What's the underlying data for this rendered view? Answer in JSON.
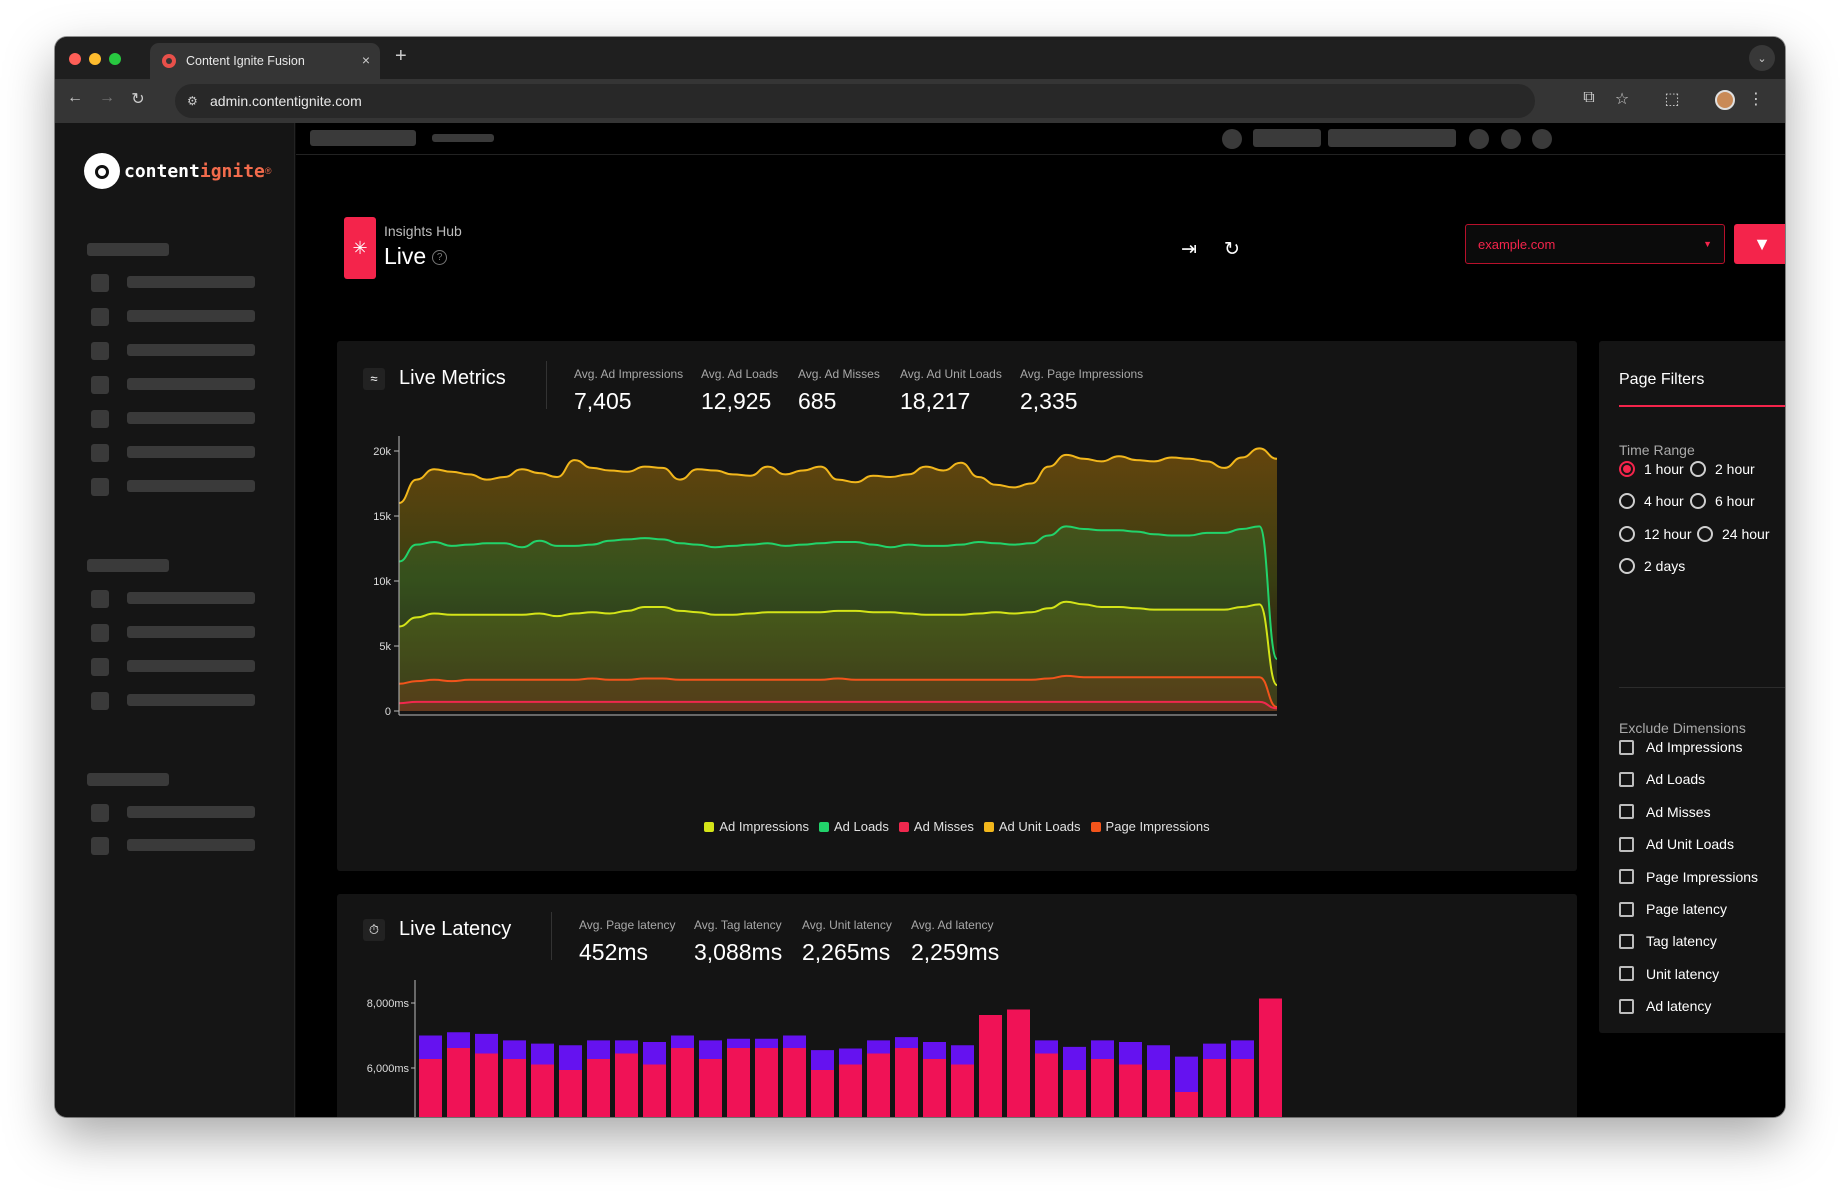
{
  "browser": {
    "tab_title": "Content Ignite Fusion",
    "url": "admin.contentignite.com",
    "new_tab": "+",
    "close": "×"
  },
  "logo": {
    "part1": "content",
    "part2": "ignite",
    "reg": "®"
  },
  "header": {
    "subtitle": "Insights Hub",
    "title": "Live",
    "domain_placeholder": "example.com"
  },
  "live_metrics": {
    "title": "Live Metrics",
    "stats": [
      {
        "label": "Avg. Ad Impressions",
        "value": "7,405"
      },
      {
        "label": "Avg. Ad Loads",
        "value": "12,925"
      },
      {
        "label": "Avg. Ad Misses",
        "value": "685"
      },
      {
        "label": "Avg. Ad Unit Loads",
        "value": "18,217"
      },
      {
        "label": "Avg. Page Impressions",
        "value": "2,335"
      }
    ],
    "legend": [
      "Ad Impressions",
      "Ad Loads",
      "Ad Misses",
      "Ad Unit Loads",
      "Page Impressions"
    ]
  },
  "live_latency": {
    "title": "Live Latency",
    "stats": [
      {
        "label": "Avg. Page latency",
        "value": "452ms"
      },
      {
        "label": "Avg. Tag latency",
        "value": "3,088ms"
      },
      {
        "label": "Avg. Unit latency",
        "value": "2,265ms"
      },
      {
        "label": "Avg. Ad latency",
        "value": "2,259ms"
      }
    ]
  },
  "page_filters": {
    "title": "Page Filters",
    "time_range_label": "Time Range",
    "time_ranges": [
      "1 hour",
      "2 hour",
      "4 hour",
      "6 hour",
      "12 hour",
      "24 hour",
      "2 days"
    ],
    "selected_time_range": "1 hour",
    "exclude_label": "Exclude Dimensions",
    "dimensions": [
      "Ad Impressions",
      "Ad Loads",
      "Ad Misses",
      "Ad Unit Loads",
      "Page Impressions",
      "Page latency",
      "Tag latency",
      "Unit latency",
      "Ad latency"
    ]
  },
  "colors": {
    "accent": "#f4244b",
    "ad_impressions": "#d4e418",
    "ad_loads": "#22d36b",
    "ad_misses": "#f0284e",
    "ad_unit_loads": "#f2b71c",
    "page_impressions": "#f2541b",
    "latency_purple": "#6512f0",
    "latency_pink": "#f01256"
  },
  "chart_data": [
    {
      "type": "area",
      "title": "",
      "y_ticks": [
        "0",
        "5k",
        "10k",
        "15k",
        "20k"
      ],
      "ylim": [
        0,
        20000
      ],
      "grid": false,
      "legend_position": "bottom",
      "series": [
        {
          "name": "Ad Unit Loads",
          "color": "#f2b71c",
          "values": [
            16000,
            17800,
            18600,
            18400,
            18200,
            17800,
            18000,
            18600,
            18300,
            18000,
            19300,
            18700,
            18500,
            18400,
            18800,
            18700,
            17800,
            18600,
            18500,
            18200,
            18100,
            18800,
            18200,
            18500,
            18800,
            17800,
            17600,
            18100,
            18000,
            18200,
            18800,
            18500,
            19100,
            18000,
            17400,
            17200,
            17500,
            18800,
            19700,
            19400,
            19200,
            19600,
            19300,
            19200,
            19500,
            19400,
            19200,
            18700,
            19500,
            20200,
            19400
          ]
        },
        {
          "name": "Ad Loads",
          "color": "#22d36b",
          "values": [
            11500,
            12800,
            13000,
            12700,
            12800,
            12900,
            12900,
            12600,
            13100,
            12700,
            12700,
            12800,
            13100,
            13200,
            13300,
            13200,
            12900,
            12800,
            12600,
            12700,
            12800,
            12900,
            12700,
            12800,
            12900,
            13000,
            13000,
            12800,
            12600,
            12800,
            12700,
            12700,
            12800,
            13000,
            12900,
            12800,
            12900,
            13500,
            14200,
            14000,
            13900,
            13900,
            13800,
            13600,
            13500,
            13500,
            13700,
            13700,
            14000,
            14200,
            4000
          ]
        },
        {
          "name": "Ad Impressions",
          "color": "#d4e418",
          "values": [
            6500,
            7200,
            7500,
            7400,
            7400,
            7400,
            7400,
            7400,
            7500,
            7300,
            7500,
            7600,
            7500,
            7700,
            8000,
            8000,
            7700,
            7600,
            7400,
            7400,
            7500,
            7600,
            7600,
            7600,
            7600,
            7700,
            7700,
            7600,
            7600,
            7500,
            7400,
            7400,
            7400,
            7500,
            7600,
            7500,
            7600,
            7900,
            8400,
            8200,
            8000,
            8000,
            7900,
            7800,
            7800,
            7800,
            7800,
            7800,
            8000,
            8200,
            2000
          ]
        },
        {
          "name": "Page Impressions",
          "color": "#f2541b",
          "values": [
            2100,
            2300,
            2400,
            2300,
            2400,
            2400,
            2400,
            2400,
            2400,
            2400,
            2400,
            2500,
            2400,
            2400,
            2500,
            2500,
            2400,
            2400,
            2400,
            2400,
            2400,
            2400,
            2400,
            2400,
            2400,
            2500,
            2400,
            2400,
            2400,
            2400,
            2400,
            2400,
            2400,
            2400,
            2400,
            2400,
            2400,
            2500,
            2700,
            2600,
            2600,
            2600,
            2600,
            2600,
            2600,
            2600,
            2600,
            2600,
            2600,
            2600,
            300
          ]
        },
        {
          "name": "Ad Misses",
          "color": "#f0284e",
          "values": [
            600,
            700,
            700,
            700,
            700,
            700,
            700,
            700,
            700,
            700,
            700,
            700,
            700,
            700,
            700,
            700,
            700,
            700,
            700,
            700,
            700,
            700,
            700,
            700,
            700,
            700,
            700,
            700,
            700,
            700,
            700,
            700,
            700,
            700,
            700,
            700,
            700,
            700,
            700,
            700,
            700,
            700,
            700,
            700,
            700,
            700,
            700,
            700,
            700,
            700,
            200
          ]
        }
      ]
    },
    {
      "type": "bar",
      "title": "",
      "y_ticks": [
        "6,000ms",
        "8,000ms"
      ],
      "stacked": true,
      "series": [
        {
          "color": "#f01256",
          "values": [
            1200,
            1300,
            1250,
            1200,
            1150,
            1100,
            1200,
            1250,
            1150,
            1300,
            1200,
            1300,
            1300,
            1300,
            1100,
            1150,
            1250,
            1300,
            1200,
            1150,
            1600,
            1650,
            1250,
            1100,
            1200,
            1150,
            1100,
            900,
            1200,
            1200,
            1750
          ]
        },
        {
          "color": "#6512f0",
          "values": [
            7000,
            7100,
            7050,
            6850,
            6750,
            6700,
            6850,
            6850,
            6800,
            7000,
            6850,
            6900,
            6900,
            7000,
            6550,
            6600,
            6850,
            6950,
            6800,
            6700,
            7200,
            7250,
            6850,
            6650,
            6850,
            6800,
            6700,
            6350,
            6750,
            6850,
            7500
          ]
        }
      ]
    }
  ]
}
